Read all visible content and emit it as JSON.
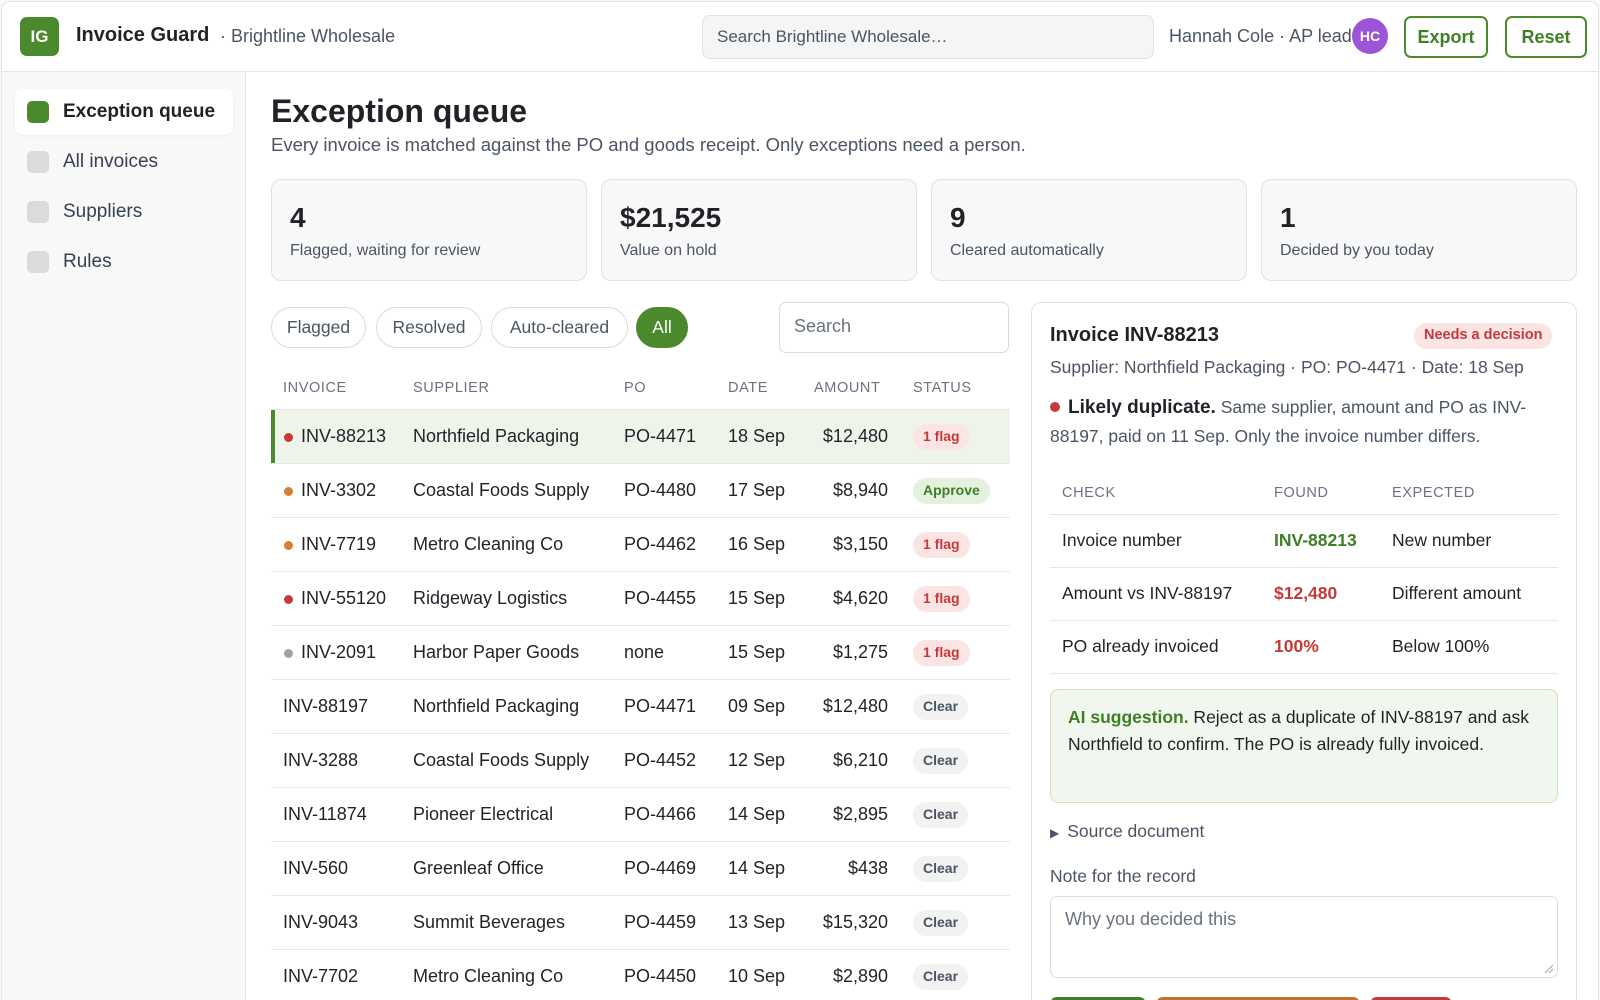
{
  "app": {
    "logo_initials": "IG",
    "name": "Invoice Guard",
    "org": "· Brightline Wholesale",
    "search_placeholder": "Search Brightline Wholesale…",
    "user": "Hannah Cole · AP lead",
    "avatar_initials": "HC",
    "export_label": "Export",
    "reset_label": "Reset",
    "accent_color": "#4a8a2c"
  },
  "sidebar": {
    "items": [
      {
        "label": "Exception queue",
        "active": true
      },
      {
        "label": "All invoices",
        "active": false
      },
      {
        "label": "Suppliers",
        "active": false
      },
      {
        "label": "Rules",
        "active": false
      }
    ]
  },
  "main": {
    "title": "Exception queue",
    "subtitle": "Every invoice is matched against the PO and goods receipt. Only exceptions need a person.",
    "stats": [
      {
        "value": "4",
        "label": "Flagged, waiting for review"
      },
      {
        "value": "$21,525",
        "label": "Value on hold"
      },
      {
        "value": "9",
        "label": "Cleared automatically"
      },
      {
        "value": "1",
        "label": "Decided by you today"
      }
    ],
    "filters": [
      {
        "label": "Flagged",
        "active": false
      },
      {
        "label": "Resolved",
        "active": false
      },
      {
        "label": "Auto-cleared",
        "active": false
      },
      {
        "label": "All",
        "active": true
      }
    ],
    "search_placeholder": "Search"
  },
  "table": {
    "columns": [
      "INVOICE",
      "SUPPLIER",
      "PO",
      "DATE",
      "AMOUNT",
      "STATUS"
    ],
    "rows": [
      {
        "invoice": "INV-88213",
        "supplier": "Northfield Packaging",
        "po": "PO-4471",
        "date": "18 Sep",
        "amount": "$12,480",
        "status": "1 flag",
        "status_kind": "flag",
        "dot": "#c43a3a",
        "selected": true
      },
      {
        "invoice": "INV-3302",
        "supplier": "Coastal Foods Supply",
        "po": "PO-4480",
        "date": "17 Sep",
        "amount": "$8,940",
        "status": "Approve",
        "status_kind": "approve",
        "dot": "#d7802f",
        "selected": false
      },
      {
        "invoice": "INV-7719",
        "supplier": "Metro Cleaning Co",
        "po": "PO-4462",
        "date": "16 Sep",
        "amount": "$3,150",
        "status": "1 flag",
        "status_kind": "flag",
        "dot": "#d7802f",
        "selected": false
      },
      {
        "invoice": "INV-55120",
        "supplier": "Ridgeway Logistics",
        "po": "PO-4455",
        "date": "15 Sep",
        "amount": "$4,620",
        "status": "1 flag",
        "status_kind": "flag",
        "dot": "#c43a3a",
        "selected": false
      },
      {
        "invoice": "INV-2091",
        "supplier": "Harbor Paper Goods",
        "po": "none",
        "date": "15 Sep",
        "amount": "$1,275",
        "status": "1 flag",
        "status_kind": "flag",
        "dot": "#9ca3af",
        "selected": false
      },
      {
        "invoice": "INV-88197",
        "supplier": "Northfield Packaging",
        "po": "PO-4471",
        "date": "09 Sep",
        "amount": "$12,480",
        "status": "Clear",
        "status_kind": "clear",
        "dot": "",
        "selected": false
      },
      {
        "invoice": "INV-3288",
        "supplier": "Coastal Foods Supply",
        "po": "PO-4452",
        "date": "12 Sep",
        "amount": "$6,210",
        "status": "Clear",
        "status_kind": "clear",
        "dot": "",
        "selected": false
      },
      {
        "invoice": "INV-11874",
        "supplier": "Pioneer Electrical",
        "po": "PO-4466",
        "date": "14 Sep",
        "amount": "$2,895",
        "status": "Clear",
        "status_kind": "clear",
        "dot": "",
        "selected": false
      },
      {
        "invoice": "INV-560",
        "supplier": "Greenleaf Office",
        "po": "PO-4469",
        "date": "14 Sep",
        "amount": "$438",
        "status": "Clear",
        "status_kind": "clear",
        "dot": "",
        "selected": false
      },
      {
        "invoice": "INV-9043",
        "supplier": "Summit Beverages",
        "po": "PO-4459",
        "date": "13 Sep",
        "amount": "$15,320",
        "status": "Clear",
        "status_kind": "clear",
        "dot": "",
        "selected": false
      },
      {
        "invoice": "INV-7702",
        "supplier": "Metro Cleaning Co",
        "po": "PO-4450",
        "date": "10 Sep",
        "amount": "$2,890",
        "status": "Clear",
        "status_kind": "clear",
        "dot": "",
        "selected": false
      }
    ]
  },
  "detail": {
    "title": "Invoice INV-88213",
    "badge": "Needs a decision",
    "meta": "Supplier: Northfield Packaging · PO: PO-4471 · Date: 18 Sep",
    "finding_title": "Likely duplicate.",
    "finding_text": " Same supplier, amount and PO as INV-88197, paid on 11 Sep. Only the invoice number differs.",
    "check_columns": [
      "CHECK",
      "FOUND",
      "EXPECTED"
    ],
    "checks": [
      {
        "check": "Invoice number",
        "found": "INV-88213",
        "found_kind": "ok",
        "expected": "New number"
      },
      {
        "check": "Amount vs INV-88197",
        "found": "$12,480",
        "found_kind": "bad",
        "expected": "Different amount"
      },
      {
        "check": "PO already invoiced",
        "found": "100%",
        "found_kind": "bad",
        "expected": "Below 100%"
      }
    ],
    "ai_label": "AI suggestion.",
    "ai_text": " Reject as a duplicate of INV-88197 and ask Northfield to confirm. The PO is already fully invoiced.",
    "source_label": "Source document",
    "note_label": "Note for the record",
    "note_placeholder": "Why you decided this",
    "action_colors": [
      "#3f7f25",
      "#c2702a",
      "#c43a3a"
    ]
  }
}
